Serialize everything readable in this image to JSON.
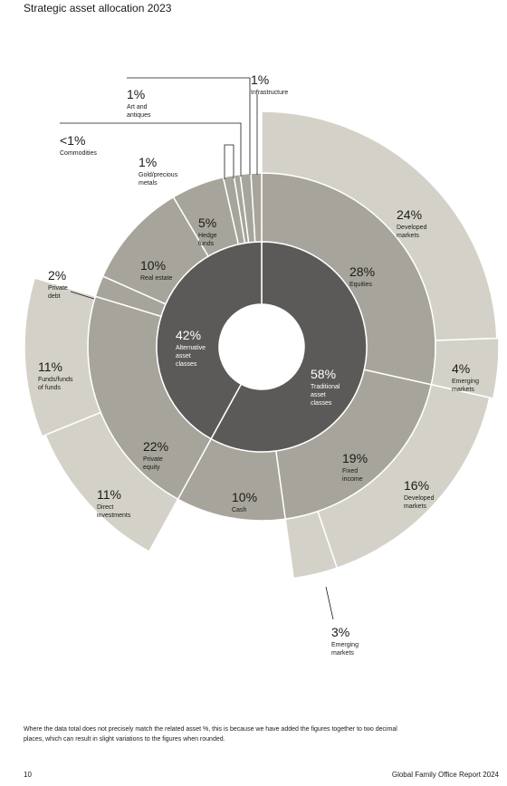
{
  "page": {
    "title": "Strategic asset allocation 2023",
    "footnote": "Where the data total does not precisely match the related asset %, this is because we have added the figures together to two decimal places, which can result in slight variations to the figures when rounded.",
    "page_number": "10",
    "report_name": "Global Family Office Report 2024"
  },
  "colors": {
    "inner": "#5b5a58",
    "middle": "#a7a49b",
    "outer": "#d4d2c8",
    "center": "#ffffff",
    "text_on_dark": "#ffffff",
    "text_on_light": "#1a1a1a"
  },
  "chart_data": {
    "type": "sunburst",
    "title": "Strategic asset allocation 2023",
    "inner": [
      {
        "id": "traditional",
        "value": "58%",
        "label": "Traditional asset classes",
        "share": 58
      },
      {
        "id": "alternative",
        "value": "42%",
        "label": "Alternative asset classes",
        "share": 42
      }
    ],
    "middle": [
      {
        "id": "equities",
        "parent": "traditional",
        "value": "28%",
        "label": "Equities",
        "share": 28
      },
      {
        "id": "fixed_income",
        "parent": "traditional",
        "value": "19%",
        "label": "Fixed income",
        "share": 19
      },
      {
        "id": "cash",
        "parent": "traditional",
        "value": "10%",
        "label": "Cash",
        "share": 10
      },
      {
        "id": "private_equity",
        "parent": "alternative",
        "value": "22%",
        "label": "Private equity",
        "share": 22
      },
      {
        "id": "private_debt",
        "parent": "alternative",
        "value": "2%",
        "label": "Private debt",
        "share": 2
      },
      {
        "id": "real_estate",
        "parent": "alternative",
        "value": "10%",
        "label": "Real estate",
        "share": 10
      },
      {
        "id": "hedge_funds",
        "parent": "alternative",
        "value": "5%",
        "label": "Hedge funds",
        "share": 5
      },
      {
        "id": "gold",
        "parent": "alternative",
        "value": "1%",
        "label": "Gold/precious metals",
        "share": 1
      },
      {
        "id": "commodities",
        "parent": "alternative",
        "value": "<1%",
        "label": "Commodities",
        "share": 0.6
      },
      {
        "id": "art",
        "parent": "alternative",
        "value": "1%",
        "label": "Art and antiques",
        "share": 1
      },
      {
        "id": "infrastructure",
        "parent": "alternative",
        "value": "1%",
        "label": "Infrastructure",
        "share": 1
      }
    ],
    "outer": [
      {
        "id": "eq_developed",
        "parent": "equities",
        "value": "24%",
        "label": "Developed markets",
        "share": 24
      },
      {
        "id": "eq_emerging",
        "parent": "equities",
        "value": "4%",
        "label": "Emerging markets",
        "share": 4
      },
      {
        "id": "fi_developed",
        "parent": "fixed_income",
        "value": "16%",
        "label": "Developed markets",
        "share": 16
      },
      {
        "id": "fi_emerging",
        "parent": "fixed_income",
        "value": "3%",
        "label": "Emerging markets",
        "share": 3
      },
      {
        "id": "pe_direct",
        "parent": "private_equity",
        "value": "11%",
        "label": "Direct investments",
        "share": 11
      },
      {
        "id": "pe_funds",
        "parent": "private_equity",
        "value": "11%",
        "label": "Funds/funds of funds",
        "share": 11
      }
    ]
  }
}
